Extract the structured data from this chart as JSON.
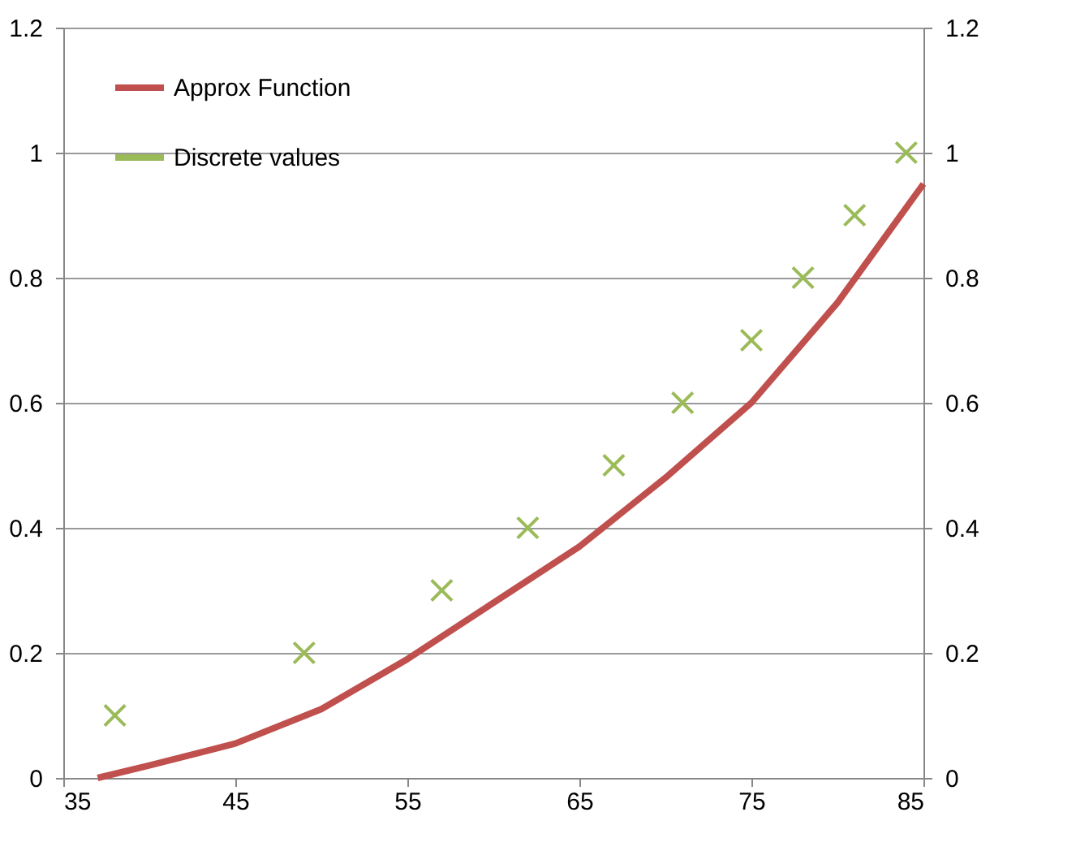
{
  "chart_data": {
    "type": "line",
    "xlim": [
      35,
      85
    ],
    "xticks": [
      35,
      45,
      55,
      65,
      75,
      85
    ],
    "ylim": [
      0,
      1.2
    ],
    "yticks": [
      0,
      0.2,
      0.4,
      0.6,
      0.8,
      1,
      1.2
    ],
    "y2lim": [
      0,
      1.2
    ],
    "y2ticks": [
      0,
      0.2,
      0.4,
      0.6,
      0.8,
      1,
      1.2
    ],
    "grid": "y",
    "legend": "top left",
    "series": [
      {
        "name": "Approx Function",
        "color": "#c0504d",
        "marker": "none",
        "x": [
          37,
          40,
          45,
          50,
          55,
          60,
          65,
          70,
          75,
          80,
          85
        ],
        "values": [
          0,
          0.02,
          0.055,
          0.11,
          0.19,
          0.28,
          0.37,
          0.48,
          0.6,
          0.76,
          0.95
        ]
      },
      {
        "name": "Discrete values",
        "type": "scatter",
        "color": "#9bbb59",
        "marker": "cross",
        "x": [
          38,
          49,
          57,
          62,
          67,
          71,
          75,
          78,
          81,
          84
        ],
        "values": [
          0.1,
          0.2,
          0.3,
          0.4,
          0.5,
          0.6,
          0.7,
          0.8,
          0.9,
          1
        ]
      }
    ]
  }
}
